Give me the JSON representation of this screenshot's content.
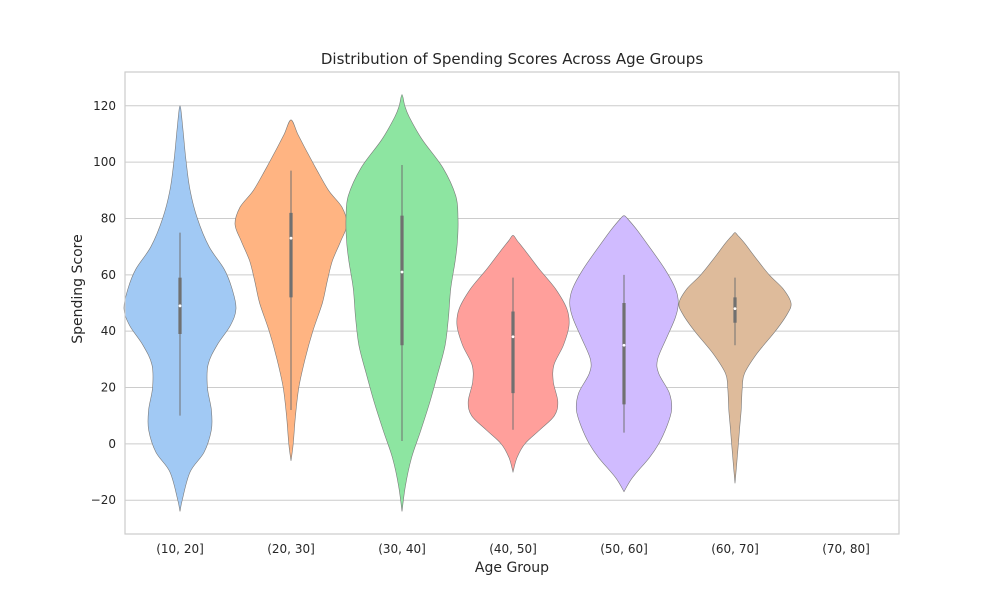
{
  "chart_data": {
    "type": "violin",
    "title": "Distribution of Spending Scores Across Age Groups",
    "xlabel": "Age Group",
    "ylabel": "Spending Score",
    "categories": [
      "(10, 20]",
      "(20, 30]",
      "(30, 40]",
      "(40, 50]",
      "(50, 60]",
      "(60, 70]",
      "(70, 80]"
    ],
    "ylim": [
      -32,
      132
    ],
    "yticks": [
      -20,
      0,
      20,
      40,
      60,
      80,
      100,
      120
    ],
    "ytick_labels": [
      "−20",
      "0",
      "20",
      "40",
      "60",
      "80",
      "100",
      "120"
    ],
    "grid": true,
    "violins": [
      {
        "category": "(10, 20]",
        "color": "#a1c9f4",
        "min": 10,
        "q1": 39,
        "median": 49,
        "q3": 59,
        "max": 75,
        "profile": [
          [
            -24,
            0
          ],
          [
            -20,
            0.04
          ],
          [
            -10,
            0.18
          ],
          [
            -3,
            0.43
          ],
          [
            5,
            0.56
          ],
          [
            12,
            0.56
          ],
          [
            20,
            0.49
          ],
          [
            28,
            0.5
          ],
          [
            35,
            0.66
          ],
          [
            42,
            0.9
          ],
          [
            48,
            1
          ],
          [
            55,
            0.93
          ],
          [
            62,
            0.79
          ],
          [
            70,
            0.52
          ],
          [
            80,
            0.31
          ],
          [
            90,
            0.18
          ],
          [
            100,
            0.11
          ],
          [
            110,
            0.06
          ],
          [
            118,
            0.02
          ],
          [
            120,
            0
          ]
        ]
      },
      {
        "category": "(20, 30]",
        "color": "#ffb482",
        "min": 12,
        "q1": 52,
        "median": 73,
        "q3": 82,
        "max": 97,
        "profile": [
          [
            -6,
            0
          ],
          [
            0,
            0.04
          ],
          [
            10,
            0.08
          ],
          [
            20,
            0.14
          ],
          [
            30,
            0.25
          ],
          [
            40,
            0.39
          ],
          [
            50,
            0.56
          ],
          [
            58,
            0.65
          ],
          [
            65,
            0.74
          ],
          [
            72,
            0.89
          ],
          [
            78,
            1
          ],
          [
            84,
            0.91
          ],
          [
            90,
            0.67
          ],
          [
            98,
            0.44
          ],
          [
            105,
            0.25
          ],
          [
            110,
            0.12
          ],
          [
            115,
            0
          ]
        ]
      },
      {
        "category": "(30, 40]",
        "color": "#8de5a1",
        "min": 1,
        "q1": 35,
        "median": 61,
        "q3": 81,
        "max": 99,
        "profile": [
          [
            -24,
            0
          ],
          [
            -15,
            0.06
          ],
          [
            -5,
            0.17
          ],
          [
            5,
            0.34
          ],
          [
            15,
            0.5
          ],
          [
            25,
            0.64
          ],
          [
            35,
            0.77
          ],
          [
            45,
            0.83
          ],
          [
            55,
            0.87
          ],
          [
            65,
            0.95
          ],
          [
            72,
            0.99
          ],
          [
            80,
            1
          ],
          [
            88,
            0.96
          ],
          [
            98,
            0.73
          ],
          [
            108,
            0.36
          ],
          [
            116,
            0.13
          ],
          [
            120,
            0.05
          ],
          [
            124,
            0
          ]
        ]
      },
      {
        "category": "(40, 50]",
        "color": "#ff9f9b",
        "min": 5,
        "q1": 18,
        "median": 38,
        "q3": 47,
        "max": 59,
        "profile": [
          [
            -10,
            0
          ],
          [
            -5,
            0.07
          ],
          [
            0,
            0.21
          ],
          [
            5,
            0.48
          ],
          [
            10,
            0.74
          ],
          [
            15,
            0.8
          ],
          [
            22,
            0.72
          ],
          [
            28,
            0.73
          ],
          [
            35,
            0.9
          ],
          [
            42,
            1
          ],
          [
            48,
            0.96
          ],
          [
            55,
            0.76
          ],
          [
            62,
            0.47
          ],
          [
            68,
            0.24
          ],
          [
            72,
            0.08
          ],
          [
            74,
            0
          ]
        ]
      },
      {
        "category": "(50, 60]",
        "color": "#d0bbff",
        "min": 4,
        "q1": 14,
        "median": 35,
        "q3": 50,
        "max": 60,
        "profile": [
          [
            -17,
            0
          ],
          [
            -12,
            0.15
          ],
          [
            -5,
            0.45
          ],
          [
            0,
            0.62
          ],
          [
            6,
            0.76
          ],
          [
            12,
            0.85
          ],
          [
            18,
            0.81
          ],
          [
            25,
            0.62
          ],
          [
            30,
            0.6
          ],
          [
            38,
            0.77
          ],
          [
            45,
            0.92
          ],
          [
            50,
            0.97
          ],
          [
            55,
            0.92
          ],
          [
            62,
            0.73
          ],
          [
            70,
            0.45
          ],
          [
            76,
            0.23
          ],
          [
            80,
            0.06
          ],
          [
            81,
            0
          ]
        ]
      },
      {
        "category": "(60, 70]",
        "color": "#debb9b",
        "min": 35,
        "q1": 43,
        "median": 48,
        "q3": 52,
        "max": 59,
        "profile": [
          [
            -14,
            0
          ],
          [
            -5,
            0.04
          ],
          [
            5,
            0.08
          ],
          [
            12,
            0.11
          ],
          [
            20,
            0.13
          ],
          [
            25,
            0.17
          ],
          [
            32,
            0.39
          ],
          [
            40,
            0.72
          ],
          [
            46,
            0.93
          ],
          [
            50,
            1
          ],
          [
            55,
            0.86
          ],
          [
            60,
            0.61
          ],
          [
            66,
            0.37
          ],
          [
            71,
            0.18
          ],
          [
            74,
            0.05
          ],
          [
            75,
            0
          ]
        ]
      }
    ],
    "colors": {
      "grid": "#cccccc",
      "frame": "#cccccc",
      "box": "#707070",
      "outline": "#7a7a7a"
    }
  }
}
